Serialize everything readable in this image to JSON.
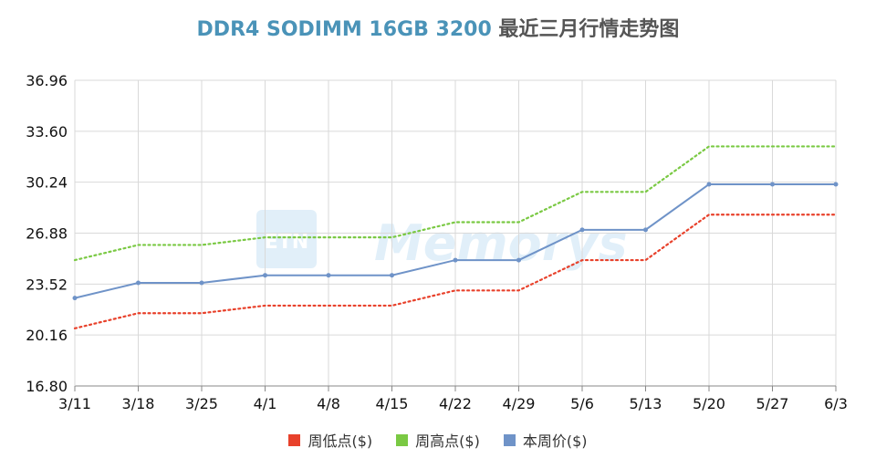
{
  "title_brand": "DDR4 SODIMM 16GB 3200",
  "title_rest": "最近三月行情走势图",
  "watermark_text": "Memorys",
  "colors": {
    "low": "#e8412b",
    "high": "#7ac943",
    "avg": "#6f93c8"
  },
  "chart_data": {
    "type": "line",
    "title": "DDR4 SODIMM 16GB 3200 最近三月行情走势图",
    "categories": [
      "3/11",
      "3/18",
      "3/25",
      "4/1",
      "4/8",
      "4/15",
      "4/22",
      "4/29",
      "5/6",
      "5/13",
      "5/20",
      "5/27",
      "6/3"
    ],
    "y_ticks": [
      "36.96",
      "33.60",
      "30.24",
      "26.88",
      "23.52",
      "20.16",
      "16.80"
    ],
    "ylim": [
      16.8,
      36.96
    ],
    "grid": true,
    "legend_position": "bottom",
    "series": [
      {
        "name": "周低点($)",
        "color": "#e8412b",
        "style": "dotted",
        "stepped": true,
        "values": [
          20.6,
          21.6,
          21.6,
          22.1,
          22.1,
          22.1,
          23.1,
          23.1,
          25.1,
          25.1,
          28.1,
          28.1,
          28.1
        ]
      },
      {
        "name": "周高点($)",
        "color": "#7ac943",
        "style": "dotted",
        "stepped": true,
        "values": [
          25.1,
          26.1,
          26.1,
          26.6,
          26.6,
          26.6,
          27.6,
          27.6,
          29.6,
          29.6,
          32.6,
          32.6,
          32.6
        ]
      },
      {
        "name": "本周价($)",
        "color": "#6f93c8",
        "style": "solid",
        "stepped": false,
        "values": [
          22.6,
          23.6,
          23.6,
          24.1,
          24.1,
          24.1,
          25.1,
          25.1,
          27.1,
          27.1,
          30.1,
          30.1,
          30.1
        ]
      }
    ]
  }
}
